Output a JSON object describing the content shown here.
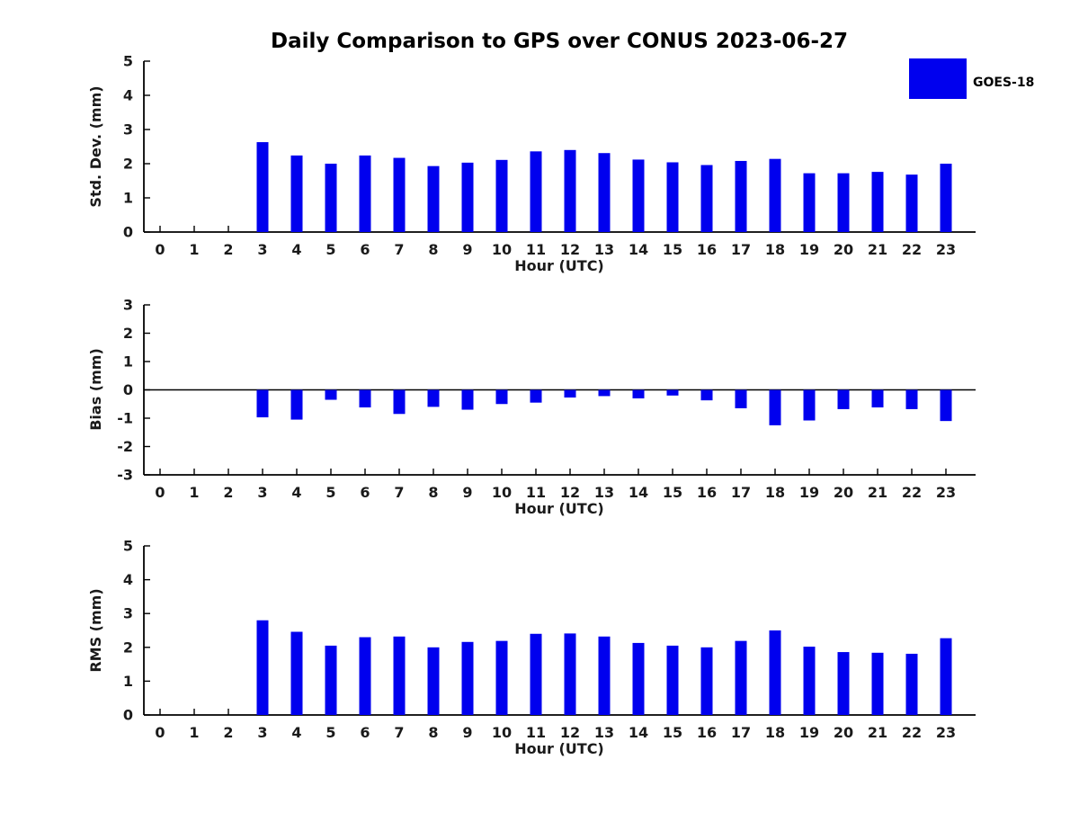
{
  "title": "Daily Comparison to GPS over CONUS 2023-06-27",
  "legend": {
    "label": "GOES-18",
    "color": "#0000ee",
    "position": "upper right"
  },
  "colors": {
    "bar": "#0000ee",
    "axis": "#000000",
    "text": "#1a1a1a",
    "background": "#ffffff"
  },
  "chart_data": [
    {
      "type": "bar",
      "title": "Daily Comparison to GPS over CONUS 2023-06-27",
      "series_name": "GOES-18",
      "xlabel": "Hour (UTC)",
      "ylabel": "Std. Dev. (mm)",
      "categories": [
        "0",
        "1",
        "2",
        "3",
        "4",
        "5",
        "6",
        "7",
        "8",
        "9",
        "10",
        "11",
        "12",
        "13",
        "14",
        "15",
        "16",
        "17",
        "18",
        "19",
        "20",
        "21",
        "22",
        "23"
      ],
      "values": [
        null,
        null,
        null,
        2.63,
        2.24,
        2.0,
        2.24,
        2.17,
        1.93,
        2.03,
        2.11,
        2.36,
        2.4,
        2.31,
        2.12,
        2.04,
        1.96,
        2.08,
        2.14,
        1.72,
        1.72,
        1.76,
        1.68,
        2.0
      ],
      "ylim": [
        0,
        5
      ],
      "yticks": [
        0,
        1,
        2,
        3,
        4,
        5
      ],
      "grid": false,
      "legend_position": "upper right"
    },
    {
      "type": "bar",
      "series_name": "GOES-18",
      "xlabel": "Hour (UTC)",
      "ylabel": "Bias (mm)",
      "categories": [
        "0",
        "1",
        "2",
        "3",
        "4",
        "5",
        "6",
        "7",
        "8",
        "9",
        "10",
        "11",
        "12",
        "13",
        "14",
        "15",
        "16",
        "17",
        "18",
        "19",
        "20",
        "21",
        "22",
        "23"
      ],
      "values": [
        null,
        null,
        null,
        -0.97,
        -1.05,
        -0.35,
        -0.62,
        -0.85,
        -0.6,
        -0.7,
        -0.5,
        -0.45,
        -0.27,
        -0.22,
        -0.3,
        -0.2,
        -0.37,
        -0.65,
        -1.25,
        -1.08,
        -0.68,
        -0.62,
        -0.68,
        -1.1
      ],
      "ylim": [
        -3,
        3
      ],
      "yticks": [
        -3,
        -2,
        -1,
        0,
        1,
        2,
        3
      ],
      "grid": false,
      "zero_line": true
    },
    {
      "type": "bar",
      "series_name": "GOES-18",
      "xlabel": "Hour (UTC)",
      "ylabel": "RMS (mm)",
      "categories": [
        "0",
        "1",
        "2",
        "3",
        "4",
        "5",
        "6",
        "7",
        "8",
        "9",
        "10",
        "11",
        "12",
        "13",
        "14",
        "15",
        "16",
        "17",
        "18",
        "19",
        "20",
        "21",
        "22",
        "23"
      ],
      "values": [
        null,
        null,
        null,
        2.8,
        2.46,
        2.05,
        2.3,
        2.32,
        2.0,
        2.16,
        2.19,
        2.4,
        2.41,
        2.32,
        2.13,
        2.05,
        2.0,
        2.19,
        2.5,
        2.02,
        1.86,
        1.84,
        1.81,
        2.27
      ],
      "ylim": [
        0,
        5
      ],
      "yticks": [
        0,
        1,
        2,
        3,
        4,
        5
      ],
      "grid": false
    }
  ]
}
